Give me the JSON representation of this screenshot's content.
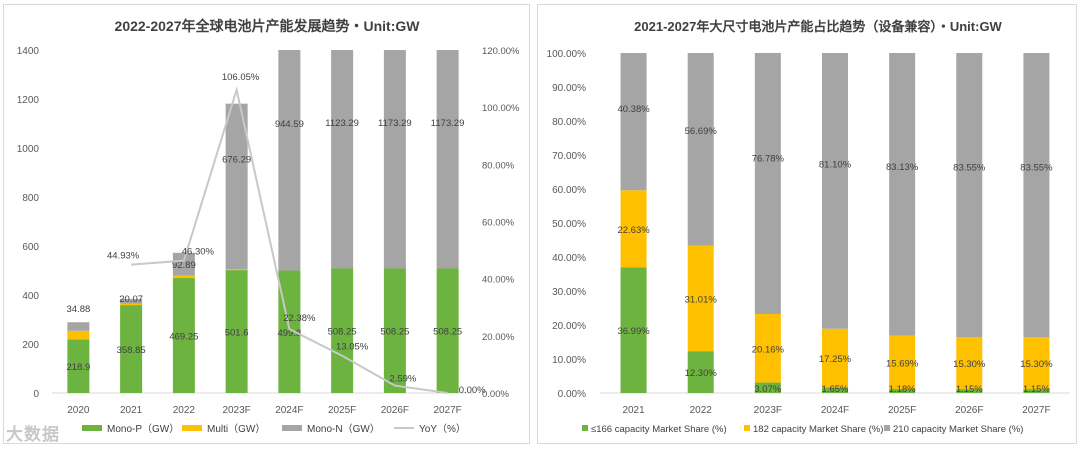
{
  "watermark": "大数据",
  "chart_data": [
    {
      "type": "bar",
      "stacked": true,
      "title": "2022-2027年全球电池片产能发展趋势・Unit:GW",
      "categories": [
        "2020",
        "2021",
        "2022",
        "2023F",
        "2024F",
        "2025F",
        "2026F",
        "2027F"
      ],
      "series": [
        {
          "name": "Mono-P（GW）",
          "color": "#6db33f",
          "values": [
            218.9,
            358.85,
            469.25,
            501.6,
            499.8,
            508.25,
            508.25,
            508.25
          ],
          "labels": [
            "218.9",
            "358.85",
            "469.25",
            "501.6",
            "499.8",
            "508.25",
            "508.25",
            "508.25"
          ]
        },
        {
          "name": "Multi（GW）",
          "color": "#ffc000",
          "values": [
            35,
            5,
            10,
            3,
            0,
            0,
            0,
            0
          ],
          "labels": [
            "",
            "",
            "",
            "",
            "",
            "",
            "",
            ""
          ]
        },
        {
          "name": "Mono-N（GW）",
          "color": "#a5a5a5",
          "values": [
            34.88,
            20.07,
            92.89,
            676.29,
            944.59,
            1123.29,
            1173.29,
            1173.29
          ],
          "labels": [
            "34.88",
            "20.07",
            "92.89",
            "676.29",
            "944.59",
            "1123.29",
            "1173.29",
            "1173.29"
          ]
        }
      ],
      "line": {
        "name": "YoY（%）",
        "color": "#c8c8c8",
        "start_index": 1,
        "values": [
          44.93,
          46.3,
          106.05,
          22.38,
          13.05,
          2.59,
          0.0
        ],
        "labels": [
          "44.93%",
          "46.30%",
          "106.05%",
          "22.38%",
          "13.05%",
          "2.59%",
          "0.00%"
        ]
      },
      "y_left": {
        "min": 0,
        "max": 1400,
        "ticks": [
          "0",
          "200",
          "400",
          "600",
          "800",
          "1000",
          "1200",
          "1400"
        ]
      },
      "y_right": {
        "min": 0,
        "max": 120,
        "ticks": [
          "0.00%",
          "20.00%",
          "40.00%",
          "60.00%",
          "80.00%",
          "100.00%",
          "120.00%"
        ]
      },
      "legend_position": "bottom"
    },
    {
      "type": "bar",
      "stacked": true,
      "percent": true,
      "title": "2021-2027年大尺寸电池片产能占比趋势（设备兼容）・Unit:GW",
      "categories": [
        "2021",
        "2022",
        "2023F",
        "2024F",
        "2025F",
        "2026F",
        "2027F"
      ],
      "series": [
        {
          "name": "≤166 capacity Market Share (%)",
          "color": "#6db33f",
          "values": [
            36.99,
            12.3,
            3.07,
            1.65,
            1.18,
            1.15,
            1.15
          ],
          "labels": [
            "36.99%",
            "12.30%",
            "3.07%",
            "1.65%",
            "1.18%",
            "1.15%",
            "1.15%"
          ]
        },
        {
          "name": "182 capacity Market Share (%)",
          "color": "#ffc000",
          "values": [
            22.63,
            31.01,
            20.16,
            17.25,
            15.69,
            15.3,
            15.3
          ],
          "labels": [
            "22.63%",
            "31.01%",
            "20.16%",
            "17.25%",
            "15.69%",
            "15.30%",
            "15.30%"
          ]
        },
        {
          "name": "210 capacity Market Share (%)",
          "color": "#a5a5a5",
          "values": [
            40.38,
            56.69,
            76.78,
            81.1,
            83.13,
            83.55,
            83.55
          ],
          "labels": [
            "40.38%",
            "56.69%",
            "76.78%",
            "81.10%",
            "83.13%",
            "83.55%",
            "83.55%"
          ]
        }
      ],
      "y": {
        "min": 0,
        "max": 100,
        "ticks": [
          "0.00%",
          "10.00%",
          "20.00%",
          "30.00%",
          "40.00%",
          "50.00%",
          "60.00%",
          "70.00%",
          "80.00%",
          "90.00%",
          "100.00%"
        ]
      },
      "legend_position": "bottom"
    }
  ]
}
